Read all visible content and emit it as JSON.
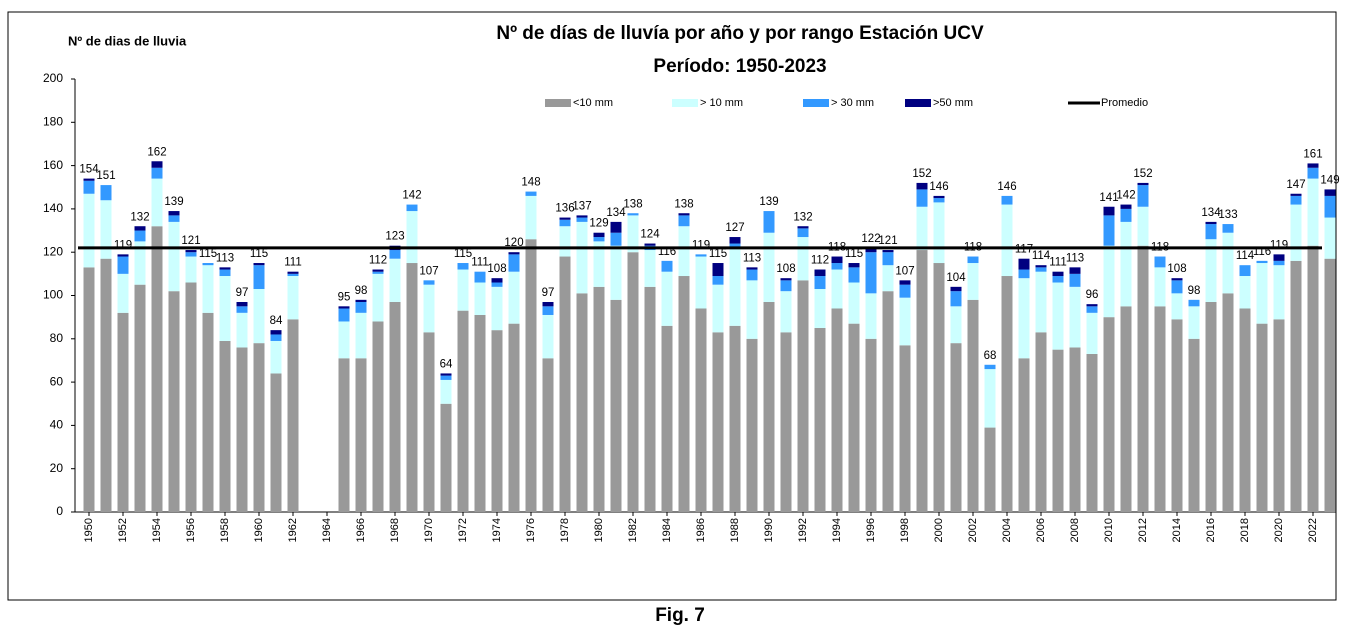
{
  "chart_data": {
    "type": "bar",
    "stacked": true,
    "title": "Nº de días de lluvía por año y por rango Estación UCV",
    "subtitle": "Período:  1950-2023",
    "y_label": "Nº de dias de lluvia",
    "caption": "Fig. 7",
    "categories": [
      "1950",
      null,
      "1952",
      null,
      "1954",
      null,
      "1956",
      null,
      "1958",
      null,
      "1960",
      null,
      "1962",
      null,
      "1964",
      null,
      "1966",
      null,
      "1968",
      null,
      "1970",
      null,
      "1972",
      null,
      "1974",
      null,
      "1976",
      null,
      "1978",
      null,
      "1980",
      null,
      "1982",
      null,
      "1984",
      null,
      "1986",
      null,
      "1988",
      null,
      "1990",
      null,
      "1992",
      null,
      "1994",
      null,
      "1996",
      null,
      "1998",
      null,
      "2000",
      null,
      "2002",
      null,
      "2004",
      null,
      "2006",
      null,
      "2008",
      null,
      "2010",
      null,
      "2012",
      null,
      "2014",
      null,
      "2016",
      null,
      "2018",
      null,
      "2020",
      null,
      "2022",
      null
    ],
    "series": [
      {
        "name": "<10 mm",
        "color": "#999999",
        "values": [
          113,
          117,
          92,
          105,
          132,
          102,
          106,
          92,
          79,
          76,
          78,
          64,
          89,
          null,
          null,
          71,
          71,
          88,
          97,
          115,
          83,
          50,
          93,
          91,
          84,
          87,
          126,
          71,
          118,
          101,
          104,
          98,
          120,
          104,
          86,
          109,
          94,
          83,
          86,
          80,
          97,
          83,
          107,
          85,
          94,
          87,
          80,
          102,
          77,
          121,
          115,
          78,
          98,
          39,
          109,
          71,
          83,
          75,
          76,
          73,
          90,
          95,
          123,
          95,
          89,
          80,
          97,
          101,
          94,
          87,
          89,
          116,
          123,
          117
        ]
      },
      {
        "name": "> 10 mm",
        "color": "#ccffff",
        "values": [
          34,
          27,
          18,
          20,
          22,
          32,
          12,
          22,
          30,
          16,
          25,
          15,
          20,
          null,
          null,
          17,
          21,
          22,
          20,
          24,
          22,
          11,
          19,
          15,
          20,
          24,
          20,
          20,
          14,
          33,
          21,
          25,
          17,
          17,
          25,
          23,
          24,
          22,
          36,
          27,
          32,
          19,
          20,
          18,
          18,
          19,
          21,
          12,
          22,
          20,
          28,
          17,
          17,
          27,
          33,
          37,
          28,
          31,
          28,
          19,
          33,
          39,
          18,
          18,
          12,
          15,
          29,
          28,
          15,
          28,
          25,
          26,
          31,
          19
        ]
      },
      {
        "name": "> 30 mm",
        "color": "#3399ff",
        "values": [
          6,
          7,
          8,
          5,
          5,
          3,
          2,
          1,
          3,
          3,
          11,
          3,
          1,
          null,
          null,
          6,
          5,
          1,
          4,
          3,
          2,
          2,
          3,
          5,
          2,
          8,
          2,
          4,
          3,
          2,
          2,
          6,
          1,
          2,
          5,
          5,
          1,
          4,
          2,
          5,
          10,
          5,
          4,
          6,
          3,
          7,
          19,
          6,
          6,
          8,
          2,
          7,
          3,
          2,
          4,
          4,
          2,
          3,
          6,
          3,
          14,
          6,
          10,
          5,
          6,
          3,
          7,
          4,
          5,
          1,
          2,
          4,
          5,
          10
        ]
      },
      {
        "name": ">50 mm",
        "color": "#000080",
        "values": [
          1,
          0,
          1,
          2,
          3,
          2,
          1,
          0,
          1,
          2,
          1,
          2,
          1,
          null,
          null,
          1,
          1,
          1,
          2,
          0,
          0,
          1,
          0,
          0,
          2,
          1,
          0,
          2,
          1,
          1,
          2,
          5,
          0,
          1,
          0,
          1,
          0,
          6,
          3,
          1,
          0,
          1,
          1,
          3,
          3,
          2,
          2,
          1,
          2,
          3,
          1,
          2,
          0,
          0,
          0,
          5,
          1,
          2,
          3,
          1,
          4,
          2,
          1,
          0,
          1,
          0,
          1,
          0,
          0,
          0,
          3,
          1,
          2,
          3
        ]
      }
    ],
    "totals": [
      154,
      151,
      119,
      132,
      162,
      139,
      121,
      115,
      113,
      97,
      115,
      84,
      111,
      null,
      null,
      95,
      98,
      112,
      123,
      142,
      107,
      64,
      115,
      111,
      108,
      120,
      148,
      97,
      136,
      137,
      129,
      134,
      138,
      124,
      116,
      138,
      119,
      115,
      127,
      113,
      139,
      108,
      132,
      112,
      118,
      115,
      122,
      121,
      107,
      152,
      146,
      104,
      118,
      68,
      146,
      117,
      114,
      111,
      113,
      96,
      141,
      142,
      152,
      118,
      108,
      98,
      134,
      133,
      114,
      116,
      119,
      147,
      161,
      149
    ],
    "reference_line": {
      "name": "Promedio",
      "value": 122,
      "color": "#000000"
    },
    "ylim": [
      0,
      200
    ],
    "yticks": [
      0,
      20,
      40,
      60,
      80,
      100,
      120,
      140,
      160,
      180,
      200
    ],
    "grid": false,
    "legend": "top"
  }
}
